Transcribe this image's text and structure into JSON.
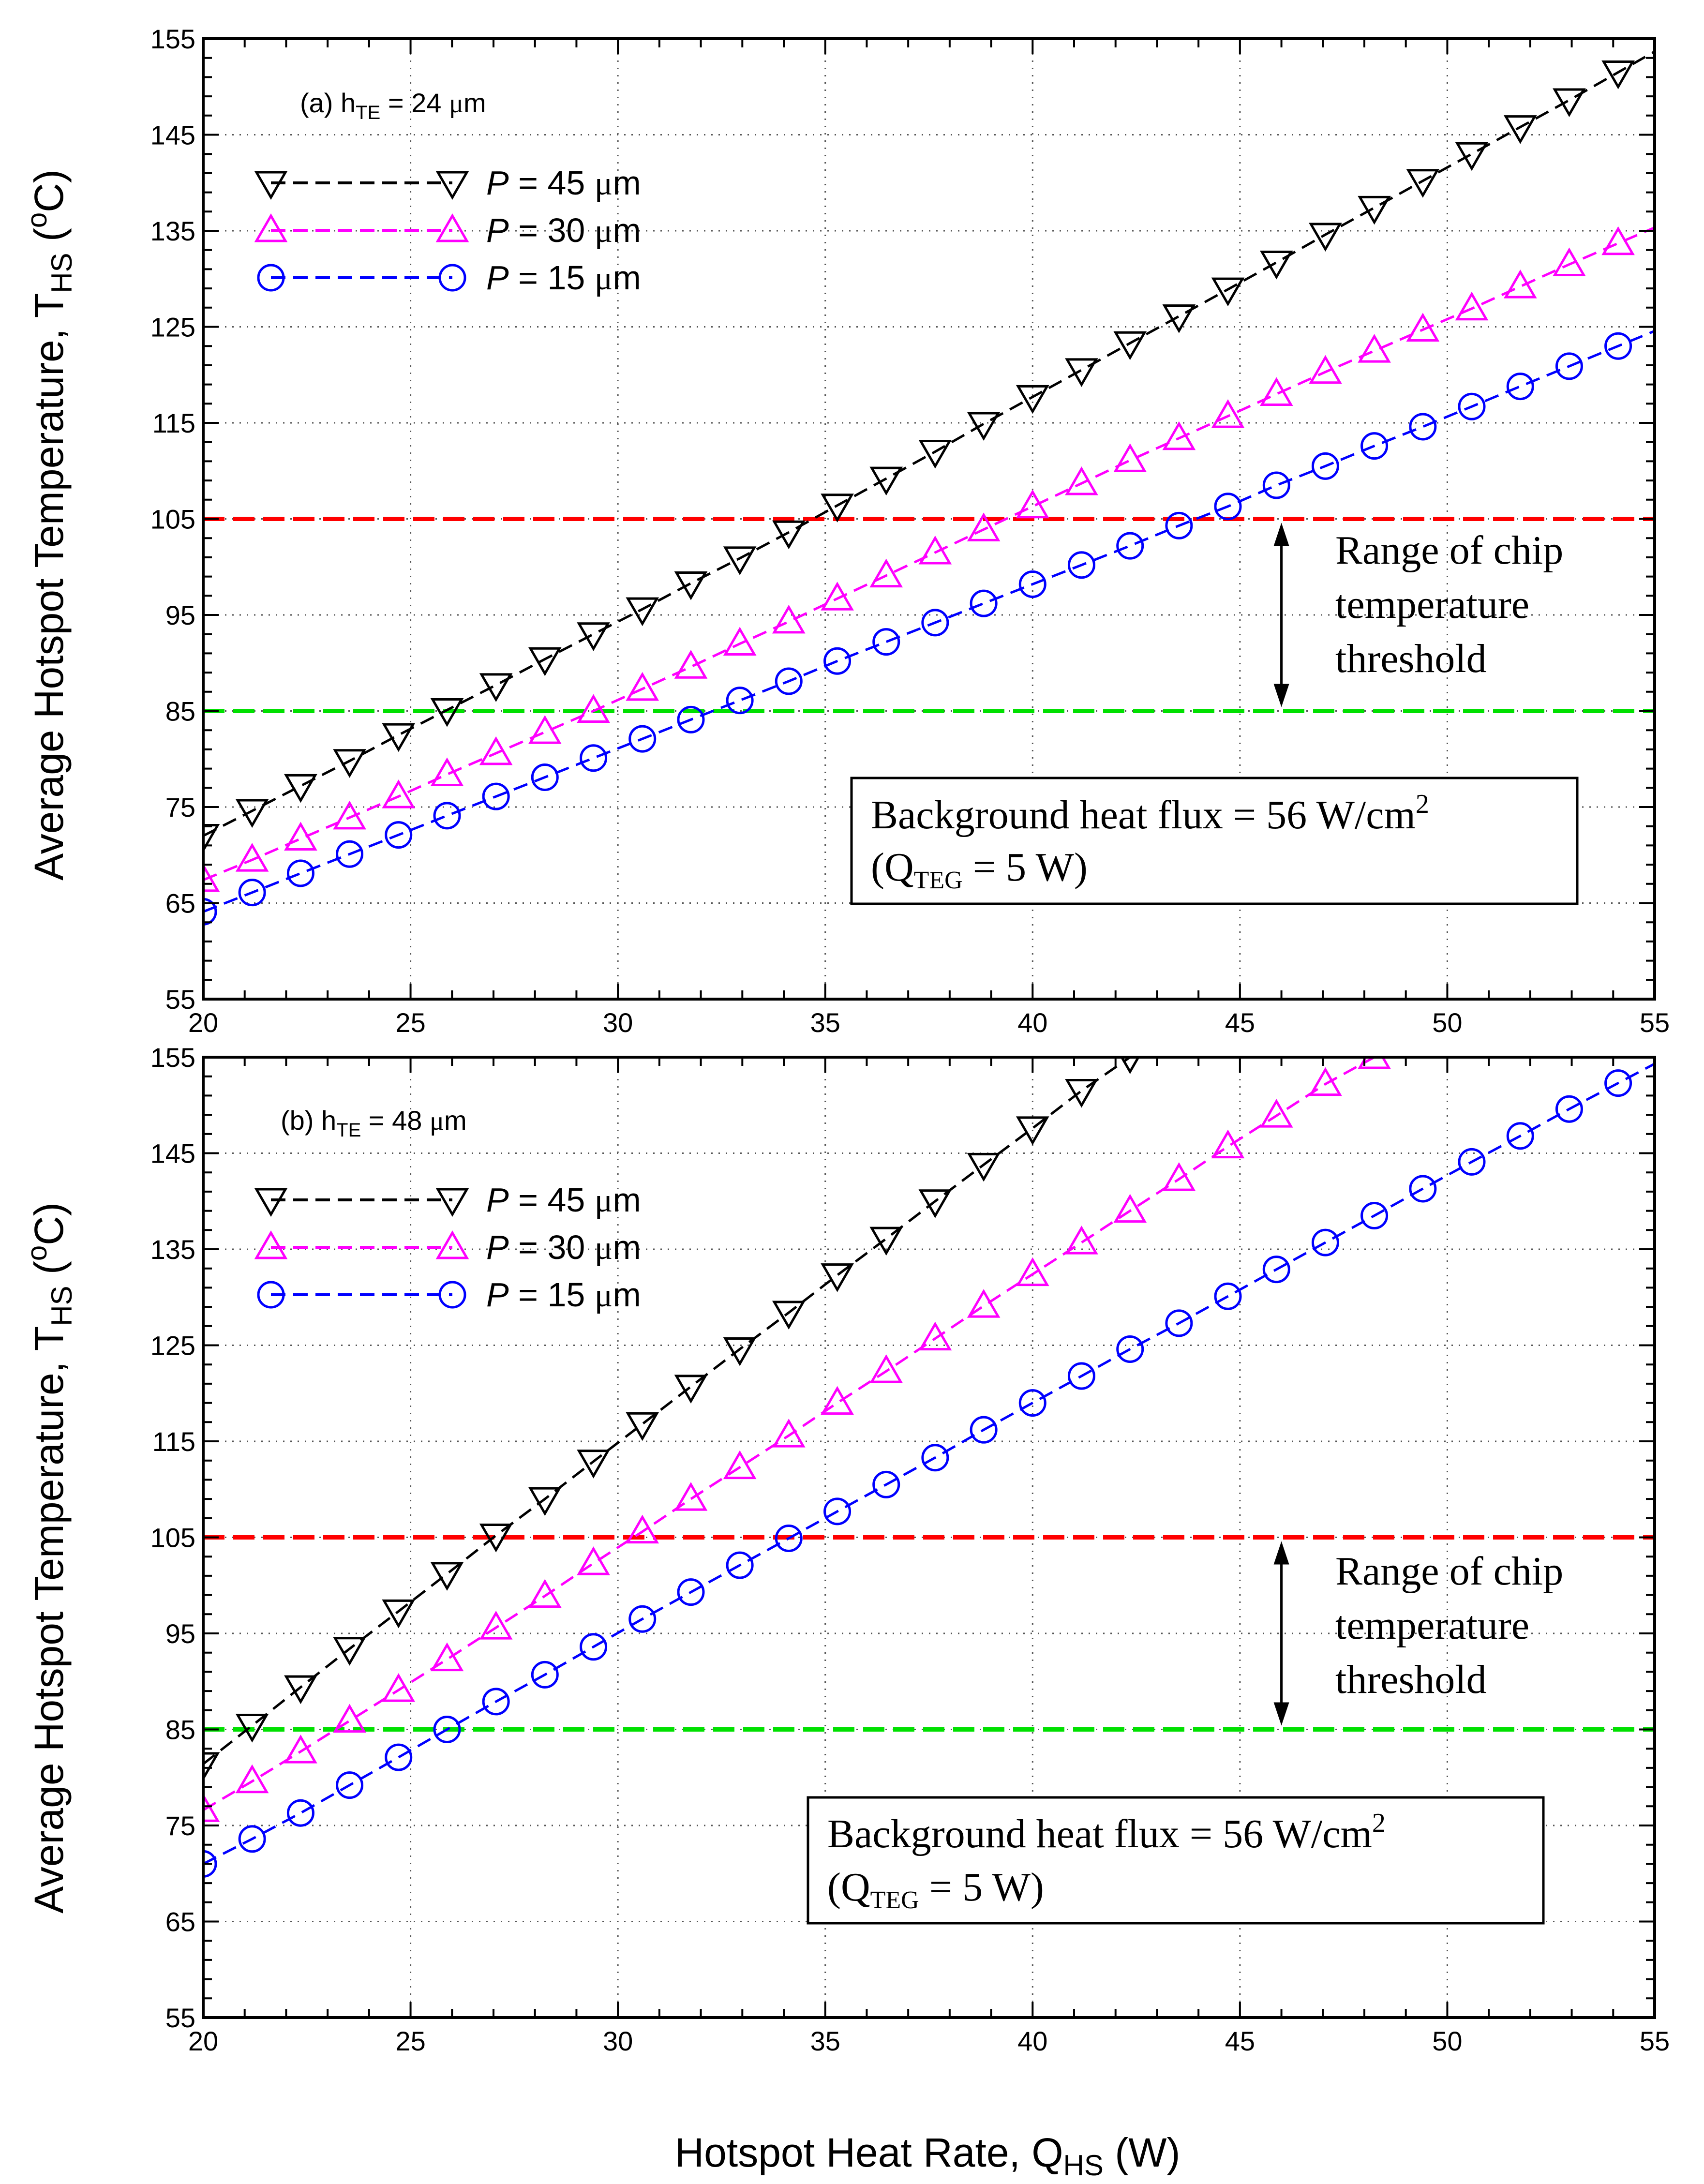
{
  "colors": {
    "p45": "#000000",
    "p30": "#ff00ff",
    "p15": "#0000ff",
    "upper_threshold": "#ff0000",
    "lower_threshold": "#00e000",
    "grid": "#555555"
  },
  "x_title": {
    "main": "Hotspot Heat Rate, Q",
    "sub": "HS",
    "unit": " (W)"
  },
  "y_title": {
    "main": "Average Hotspot Temperature, T",
    "sub": "HS",
    "unit_open": " (",
    "unit_sup": "o",
    "unit_close": "C)"
  },
  "chart_data": [
    {
      "type": "line",
      "panel_label": {
        "prefix": "(a) h",
        "sub": "TE",
        "value": " = 24 ",
        "mu": "μ",
        "unit": "m"
      },
      "xlim": [
        20,
        55
      ],
      "ylim": [
        55,
        155
      ],
      "x_ticks": [
        "20",
        "25",
        "30",
        "35",
        "40",
        "45",
        "50",
        "55"
      ],
      "y_ticks": [
        "55",
        "65",
        "75",
        "85",
        "95",
        "105",
        "115",
        "125",
        "135",
        "145",
        "155"
      ],
      "grid": true,
      "legend_position": "top-left",
      "series": [
        {
          "key": "p45",
          "marker": "triangle-down",
          "label_p": "P",
          "label_rest": " = 45 ",
          "mu": "μ",
          "unit": "m",
          "x": [
            20,
            21.18,
            22.35,
            23.53,
            24.71,
            25.88,
            27.06,
            28.24,
            29.41,
            30.59,
            31.76,
            32.94,
            34.12,
            35.29,
            36.47,
            37.65,
            38.82,
            40,
            41.18,
            42.35,
            43.53,
            44.71,
            45.88,
            47.06,
            48.24,
            49.41,
            50.59,
            51.76,
            52.94,
            54.12
          ],
          "y": [
            72,
            74.6,
            77.2,
            79.8,
            82.5,
            85.1,
            87.7,
            90.4,
            93,
            95.6,
            98.3,
            100.9,
            103.6,
            106.4,
            109.2,
            112,
            114.9,
            117.7,
            120.5,
            123.3,
            126.1,
            128.9,
            131.7,
            134.6,
            137.4,
            140.2,
            143,
            145.8,
            148.6,
            151.5
          ]
        },
        {
          "key": "p30",
          "marker": "triangle-up",
          "label_p": "P",
          "label_rest": " = 30 ",
          "mu": "μ",
          "unit": "m",
          "x": [
            20,
            21.18,
            22.35,
            23.53,
            24.71,
            25.88,
            27.06,
            28.24,
            29.41,
            30.59,
            31.76,
            32.94,
            34.12,
            35.29,
            36.47,
            37.65,
            38.82,
            40,
            41.18,
            42.35,
            43.53,
            44.71,
            45.88,
            47.06,
            48.24,
            49.41,
            50.59,
            51.76,
            52.94,
            54.12
          ],
          "y": [
            67.4,
            69.5,
            71.7,
            73.9,
            76.1,
            78.4,
            80.6,
            82.8,
            85,
            87.3,
            89.6,
            92,
            94.3,
            96.7,
            99.1,
            101.5,
            103.9,
            106.3,
            108.7,
            111.1,
            113.4,
            115.7,
            118,
            120.3,
            122.5,
            124.7,
            126.9,
            129.2,
            131.5,
            133.7
          ]
        },
        {
          "key": "p15",
          "marker": "circle",
          "label_p": "P",
          "label_rest": " = 15 ",
          "mu": "μ",
          "unit": "m",
          "x": [
            20,
            21.18,
            22.35,
            23.53,
            24.71,
            25.88,
            27.06,
            28.24,
            29.41,
            30.59,
            31.76,
            32.94,
            34.12,
            35.29,
            36.47,
            37.65,
            38.82,
            40,
            41.18,
            42.35,
            43.53,
            44.71,
            45.88,
            47.06,
            48.24,
            49.41,
            50.59,
            51.76,
            52.94,
            54.12
          ],
          "y": [
            64.1,
            66.1,
            68.1,
            70.1,
            72.1,
            74.1,
            76.1,
            78.1,
            80.1,
            82.1,
            84.1,
            86.1,
            88.1,
            90.2,
            92.2,
            94.2,
            96.2,
            98.2,
            100.2,
            102.2,
            104.3,
            106.3,
            108.5,
            110.5,
            112.6,
            114.6,
            116.7,
            118.8,
            120.9,
            123
          ]
        }
      ],
      "thresholds": [
        {
          "key": "upper_threshold",
          "y": 105
        },
        {
          "key": "lower_threshold",
          "y": 85
        }
      ],
      "annotation": {
        "lines": [
          "Range of chip",
          "temperature",
          "threshold"
        ],
        "arrow_x": 46,
        "arrow_y": [
          105,
          85
        ]
      },
      "box": {
        "line1_main": "Background heat flux = 56 W/cm",
        "line1_sup": "2",
        "line2_open": "(Q",
        "line2_sub": "TEG",
        "line2_close": " = 5 W)"
      }
    },
    {
      "type": "line",
      "panel_label": {
        "prefix": "(b) h",
        "sub": "TE",
        "value": " = 48 ",
        "mu": "μ",
        "unit": "m"
      },
      "xlim": [
        20,
        55
      ],
      "ylim": [
        55,
        155
      ],
      "x_ticks": [
        "20",
        "25",
        "30",
        "35",
        "40",
        "45",
        "50",
        "55"
      ],
      "y_ticks": [
        "55",
        "65",
        "75",
        "85",
        "95",
        "105",
        "115",
        "125",
        "135",
        "145",
        "155"
      ],
      "grid": true,
      "legend_position": "top-left",
      "series": [
        {
          "key": "p45",
          "marker": "triangle-down",
          "label_p": "P",
          "label_rest": " = 45 ",
          "mu": "μ",
          "unit": "m",
          "x": [
            20,
            21.18,
            22.35,
            23.53,
            24.71,
            25.88,
            27.06,
            28.24,
            29.41,
            30.59,
            31.76,
            32.94,
            34.12,
            35.29,
            36.47,
            37.65,
            38.82,
            40,
            41.18,
            42.35
          ],
          "y": [
            81.4,
            85.4,
            89.4,
            93.4,
            97.3,
            101.2,
            105.2,
            109,
            112.9,
            116.8,
            120.7,
            124.6,
            128.4,
            132.3,
            136.1,
            140,
            143.8,
            147.6,
            151.5,
            155
          ]
        },
        {
          "key": "p30",
          "marker": "triangle-up",
          "label_p": "P",
          "label_rest": " = 30 ",
          "mu": "μ",
          "unit": "m",
          "x": [
            20,
            21.18,
            22.35,
            23.53,
            24.71,
            25.88,
            27.06,
            28.24,
            29.41,
            30.59,
            31.76,
            32.94,
            34.12,
            35.29,
            36.47,
            37.65,
            38.82,
            40,
            41.18,
            42.35,
            43.53,
            44.71,
            45.88,
            47.06,
            48.24
          ],
          "y": [
            76.6,
            79.6,
            82.7,
            85.9,
            89.1,
            92.3,
            95.6,
            98.9,
            102.3,
            105.6,
            109,
            112.3,
            115.6,
            119,
            122.3,
            125.7,
            129.1,
            132.4,
            135.7,
            139,
            142.3,
            145.7,
            148.9,
            152.2,
            155
          ]
        },
        {
          "key": "p15",
          "marker": "circle",
          "label_p": "P",
          "label_rest": " = 15 ",
          "mu": "μ",
          "unit": "m",
          "x": [
            20,
            21.18,
            22.35,
            23.53,
            24.71,
            25.88,
            27.06,
            28.24,
            29.41,
            30.59,
            31.76,
            32.94,
            34.12,
            35.29,
            36.47,
            37.65,
            38.82,
            40,
            41.18,
            42.35,
            43.53,
            44.71,
            45.88,
            47.06,
            48.24,
            49.41,
            50.59,
            51.76,
            52.94,
            54.12
          ],
          "y": [
            71,
            73.6,
            76.3,
            79.2,
            82.1,
            85,
            87.9,
            90.7,
            93.6,
            96.5,
            99.3,
            102.1,
            104.9,
            107.7,
            110.5,
            113.3,
            116.2,
            119,
            121.8,
            124.6,
            127.3,
            130.1,
            132.9,
            135.7,
            138.5,
            141.3,
            144.1,
            146.8,
            149.6,
            152.3
          ]
        }
      ],
      "thresholds": [
        {
          "key": "upper_threshold",
          "y": 105
        },
        {
          "key": "lower_threshold",
          "y": 85
        }
      ],
      "annotation": {
        "lines": [
          "Range of chip",
          "temperature",
          "threshold"
        ],
        "arrow_x": 46,
        "arrow_y": [
          105,
          85
        ]
      },
      "box": {
        "line1_main": "Background heat flux = 56 W/cm",
        "line1_sup": "2",
        "line2_open": "(Q",
        "line2_sub": "TEG",
        "line2_close": " = 5 W)"
      }
    }
  ]
}
